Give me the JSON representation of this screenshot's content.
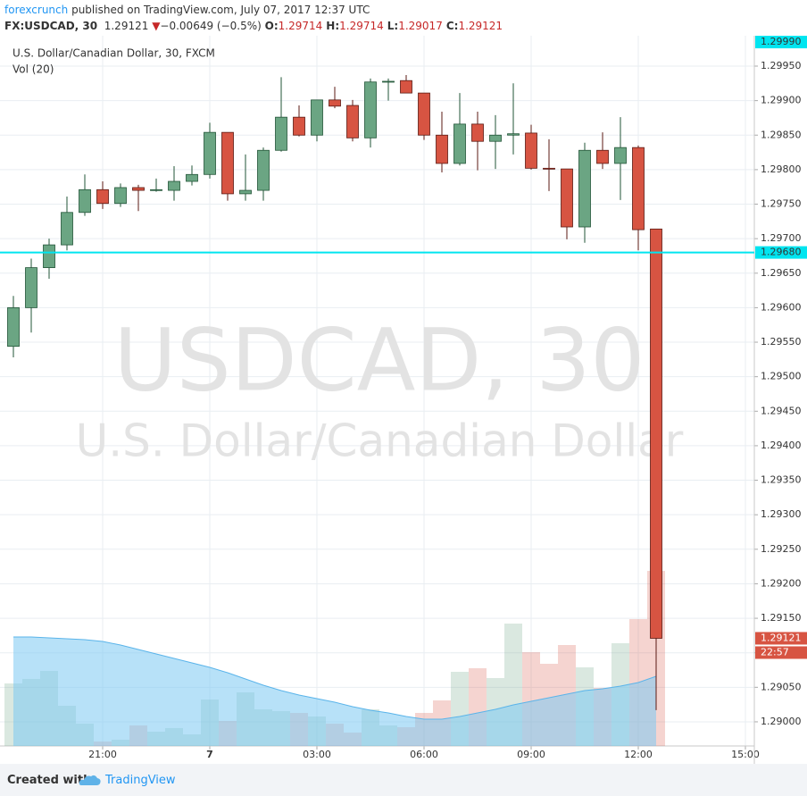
{
  "header": {
    "publisher": "forexcrunch",
    "published": "published on TradingView.com, July 07, 2017 12:37 UTC",
    "symbol": "FX:USDCAD, 30",
    "last": "1.29121",
    "arrow": "▼",
    "change": "−0.00649 (−0.5%)",
    "ohlc": [
      {
        "key": "O:",
        "value": "1.29714"
      },
      {
        "key": "H:",
        "value": "1.29714"
      },
      {
        "key": "L:",
        "value": "1.29017"
      },
      {
        "key": "C:",
        "value": "1.29121"
      }
    ]
  },
  "footer": {
    "created": "Created with",
    "brand": "TradingView"
  },
  "chart_data": {
    "type": "candlestick",
    "title": "U.S. Dollar/Canadian Dollar, 30, FXCM",
    "watermark": [
      "USDCAD, 30",
      "U.S. Dollar/Canadian Dollar"
    ],
    "up_color": "#6ba583",
    "down_color": "#d75442",
    "open": [
      1.29544,
      1.296,
      1.29658,
      1.29691,
      1.29738,
      1.29771,
      1.29751,
      1.29774,
      1.2977,
      1.2977,
      1.29783,
      1.29793,
      1.29854,
      1.29765,
      1.2977,
      1.29828,
      1.29876,
      1.2985,
      1.29901,
      1.29893,
      1.29846,
      1.29927,
      1.29929,
      1.29911,
      1.2985,
      1.29809,
      1.29866,
      1.29841,
      1.2985,
      1.29853,
      1.29802,
      1.29801,
      1.29717,
      1.29828,
      1.29809,
      1.29832,
      1.29714
    ],
    "high": [
      1.29617,
      1.29671,
      1.297,
      1.29761,
      1.29793,
      1.29783,
      1.2978,
      1.29778,
      1.29787,
      1.29805,
      1.29806,
      1.29868,
      1.29854,
      1.29822,
      1.29832,
      1.29934,
      1.29893,
      1.29901,
      1.2992,
      1.29901,
      1.29932,
      1.29932,
      1.29937,
      1.29911,
      1.29884,
      1.29911,
      1.29884,
      1.29879,
      1.29925,
      1.29865,
      1.29844,
      1.29801,
      1.29839,
      1.29854,
      1.29876,
      1.29835,
      1.29714
    ],
    "low": [
      1.29528,
      1.29564,
      1.29642,
      1.29683,
      1.29733,
      1.29743,
      1.29746,
      1.2974,
      1.29768,
      1.29755,
      1.29777,
      1.29787,
      1.29755,
      1.29755,
      1.29755,
      1.29826,
      1.29848,
      1.29841,
      1.29889,
      1.29841,
      1.29832,
      1.299,
      1.29911,
      1.29843,
      1.29796,
      1.29806,
      1.29799,
      1.29801,
      1.29822,
      1.298,
      1.29769,
      1.29699,
      1.29694,
      1.29801,
      1.29756,
      1.29683,
      1.29017
    ],
    "close": [
      1.296,
      1.29658,
      1.29691,
      1.29738,
      1.29771,
      1.29751,
      1.29774,
      1.2977,
      1.29771,
      1.29783,
      1.29793,
      1.29854,
      1.29765,
      1.2977,
      1.29828,
      1.29876,
      1.2985,
      1.29901,
      1.29892,
      1.29846,
      1.29927,
      1.29928,
      1.29911,
      1.2985,
      1.29809,
      1.29866,
      1.29841,
      1.2985,
      1.29852,
      1.29802,
      1.29801,
      1.29717,
      1.29828,
      1.29809,
      1.29832,
      1.29713,
      1.29121
    ],
    "xlim": [
      -0.75,
      41.5
    ],
    "xticks": [
      {
        "value": 5,
        "label": "21:00"
      },
      {
        "value": 11,
        "label": "7"
      },
      {
        "value": 17,
        "label": "03:00"
      },
      {
        "value": 23,
        "label": "06:00"
      },
      {
        "value": 29,
        "label": "09:00"
      },
      {
        "value": 35,
        "label": "12:00"
      },
      {
        "value": 41,
        "label": "15:00"
      }
    ],
    "ylim": [
      1.28965,
      1.29994
    ],
    "yticks": [
      {
        "value": 1.29,
        "label": "1.29000"
      },
      {
        "value": 1.2905,
        "label": "1.29050"
      },
      {
        "value": 1.291,
        "label": "1.29100"
      },
      {
        "value": 1.2915,
        "label": "1.29150"
      },
      {
        "value": 1.292,
        "label": "1.29200"
      },
      {
        "value": 1.2925,
        "label": "1.29250"
      },
      {
        "value": 1.293,
        "label": "1.29300"
      },
      {
        "value": 1.2935,
        "label": "1.29350"
      },
      {
        "value": 1.294,
        "label": "1.29400"
      },
      {
        "value": 1.2945,
        "label": "1.29450"
      },
      {
        "value": 1.295,
        "label": "1.29500"
      },
      {
        "value": 1.2955,
        "label": "1.29550"
      },
      {
        "value": 1.296,
        "label": "1.29600"
      },
      {
        "value": 1.2965,
        "label": "1.29650"
      },
      {
        "value": 1.297,
        "label": "1.29700"
      },
      {
        "value": 1.2975,
        "label": "1.29750"
      },
      {
        "value": 1.298,
        "label": "1.29800"
      },
      {
        "value": 1.2985,
        "label": "1.29850"
      },
      {
        "value": 1.299,
        "label": "1.29900"
      },
      {
        "value": 1.2995,
        "label": "1.29950"
      }
    ],
    "grid": true,
    "volume": {
      "name": "Vol (20)",
      "y2lim": [
        0,
        795
      ],
      "ma_color": "#7cc8f2",
      "values": [
        70,
        75,
        84,
        45,
        25,
        5,
        7,
        23,
        16,
        20,
        13,
        52,
        28,
        60,
        41,
        39,
        37,
        33,
        25,
        15,
        41,
        23,
        21,
        37,
        51,
        83,
        87,
        76,
        137,
        105,
        92,
        113,
        88,
        65,
        115,
        142,
        196
      ],
      "ma": [
        122,
        122,
        121,
        120,
        119,
        117,
        113,
        108,
        103,
        98,
        93,
        88,
        82,
        75,
        68,
        62,
        57,
        53,
        49,
        44,
        40,
        37,
        33,
        30,
        30,
        33,
        37,
        41,
        46,
        50,
        54,
        58,
        62,
        64,
        67,
        71,
        78
      ]
    },
    "hline": {
      "value": 1.2968,
      "label": "1.29680",
      "color": "#00e5f0"
    },
    "top_label": {
      "value": 1.2999,
      "label": "1.29990"
    },
    "last_price": {
      "value": 1.29121,
      "label": "1.29121",
      "countdown": "22:57"
    }
  }
}
